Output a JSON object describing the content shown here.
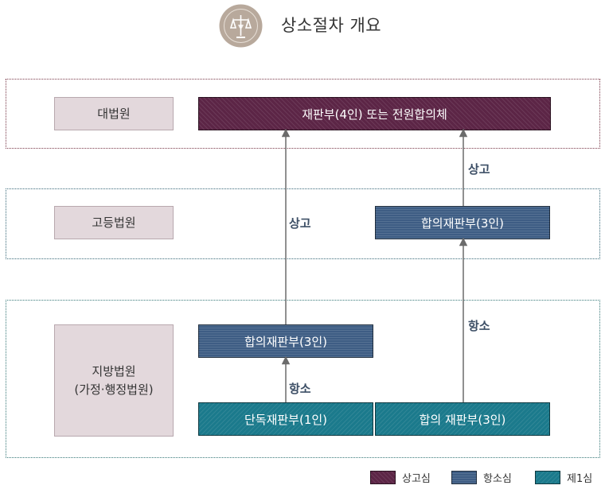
{
  "header": {
    "title": "상소절차 개요"
  },
  "courts": {
    "supreme": "대법원",
    "high": "고등법원",
    "district_line1": "지방법원",
    "district_line2": "(가정·행정법원)"
  },
  "panels": {
    "supreme": "재판부(4인) 또는 전원합의체",
    "high_collegiate": "합의재판부(3인)",
    "district_collegiate": "합의재판부(3인)",
    "single_judge": "단독재판부(1인)",
    "district_collegiate_first": "합의 재판부(3인)"
  },
  "arrow_labels": {
    "appeal_1": "상고",
    "appeal_2": "상고",
    "hangso_1": "항소",
    "hangso_2": "항소"
  },
  "legend": {
    "sango": "상고심",
    "hangso": "항소심",
    "first": "제1심"
  },
  "colors": {
    "sango": "#5c2546",
    "hangso": "#3e5d84",
    "first": "#1b7a8c",
    "court_label_bg": "#e3d8dc",
    "arrow": "#6b6b6b"
  }
}
